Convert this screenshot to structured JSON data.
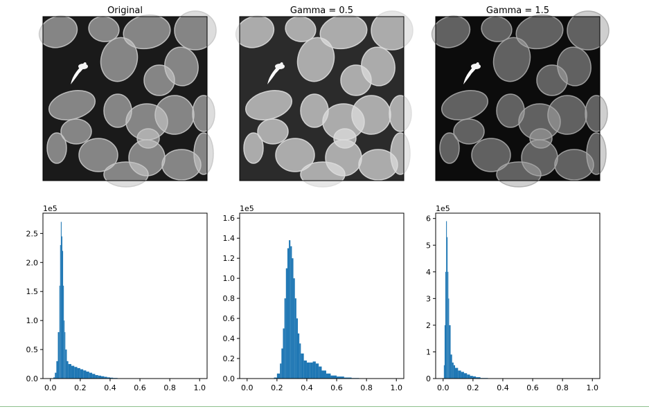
{
  "figure": {
    "panel_titles": [
      "Original",
      "Gamma = 0.5",
      "Gamma = 1.5"
    ],
    "image_tone": [
      "#c8c8c8",
      "#dcdcdc",
      "#a8a8a8"
    ],
    "image_bg": [
      "#1a1a1a",
      "#2b2b2b",
      "#0c0c0c"
    ],
    "bar_color": "#1f77b4"
  },
  "chart_data": [
    {
      "type": "bar",
      "title": "",
      "xlabel": "",
      "ylabel": "",
      "y_multiplier_label": "1e5",
      "xlim": [
        -0.05,
        1.05
      ],
      "ylim": [
        0,
        2.85
      ],
      "x_ticks": [
        "0.0",
        "0.2",
        "0.4",
        "0.6",
        "0.8",
        "1.0"
      ],
      "y_ticks": [
        "0.0",
        "0.5",
        "1.0",
        "1.5",
        "2.0",
        "2.5"
      ],
      "x": [
        0.0,
        0.02,
        0.03,
        0.04,
        0.05,
        0.06,
        0.065,
        0.07,
        0.075,
        0.08,
        0.085,
        0.09,
        0.095,
        0.1,
        0.11,
        0.12,
        0.14,
        0.16,
        0.18,
        0.2,
        0.22,
        0.24,
        0.26,
        0.28,
        0.3,
        0.32,
        0.34,
        0.36,
        0.38,
        0.4,
        0.42,
        0.45,
        0.5
      ],
      "values": [
        0.0,
        0.02,
        0.1,
        0.3,
        0.8,
        1.6,
        2.3,
        2.7,
        2.45,
        2.2,
        1.6,
        1.0,
        0.8,
        0.5,
        0.3,
        0.25,
        0.22,
        0.2,
        0.18,
        0.16,
        0.14,
        0.12,
        0.1,
        0.08,
        0.06,
        0.05,
        0.04,
        0.03,
        0.02,
        0.015,
        0.01,
        0.005,
        0.0
      ],
      "grid": false
    },
    {
      "type": "bar",
      "title": "",
      "xlabel": "",
      "ylabel": "",
      "y_multiplier_label": "1e5",
      "xlim": [
        -0.05,
        1.05
      ],
      "ylim": [
        0,
        1.65
      ],
      "x_ticks": [
        "0.0",
        "0.2",
        "0.4",
        "0.6",
        "0.8",
        "1.0"
      ],
      "y_ticks": [
        "0.0",
        "0.2",
        "0.4",
        "0.6",
        "0.8",
        "1.0",
        "1.2",
        "1.4",
        "1.6"
      ],
      "x": [
        0.15,
        0.18,
        0.2,
        0.22,
        0.23,
        0.24,
        0.25,
        0.26,
        0.27,
        0.28,
        0.29,
        0.3,
        0.31,
        0.32,
        0.33,
        0.34,
        0.35,
        0.36,
        0.38,
        0.4,
        0.42,
        0.44,
        0.46,
        0.48,
        0.5,
        0.53,
        0.56,
        0.6,
        0.65,
        0.7,
        0.75
      ],
      "values": [
        0.0,
        0.01,
        0.05,
        0.15,
        0.3,
        0.5,
        0.8,
        1.1,
        1.3,
        1.38,
        1.32,
        1.2,
        1.0,
        0.8,
        0.6,
        0.45,
        0.35,
        0.25,
        0.18,
        0.16,
        0.16,
        0.17,
        0.15,
        0.12,
        0.08,
        0.05,
        0.03,
        0.02,
        0.01,
        0.005,
        0.0
      ],
      "grid": false
    },
    {
      "type": "bar",
      "title": "",
      "xlabel": "",
      "ylabel": "",
      "y_multiplier_label": "1e5",
      "xlim": [
        -0.05,
        1.05
      ],
      "ylim": [
        0,
        6.2
      ],
      "x_ticks": [
        "0.0",
        "0.2",
        "0.4",
        "0.6",
        "0.8",
        "1.0"
      ],
      "y_ticks": [
        "0",
        "1",
        "2",
        "3",
        "4",
        "5",
        "6"
      ],
      "x": [
        0.0,
        0.005,
        0.01,
        0.015,
        0.02,
        0.025,
        0.03,
        0.035,
        0.04,
        0.05,
        0.06,
        0.07,
        0.08,
        0.1,
        0.12,
        0.14,
        0.16,
        0.18,
        0.2,
        0.22,
        0.25,
        0.3
      ],
      "values": [
        0.0,
        0.5,
        2.0,
        4.0,
        5.9,
        5.3,
        4.0,
        3.0,
        2.0,
        0.9,
        0.6,
        0.5,
        0.4,
        0.3,
        0.25,
        0.2,
        0.15,
        0.1,
        0.08,
        0.05,
        0.02,
        0.0
      ],
      "grid": false
    }
  ]
}
